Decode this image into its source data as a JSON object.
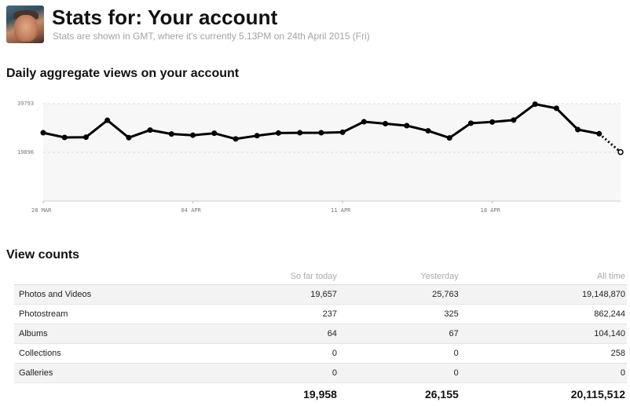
{
  "header": {
    "title": "Stats for: Your account",
    "subtitle": "Stats are shown in GMT, where it's currently 5.13PM on 24th April 2015 (Fri)"
  },
  "chart_section": {
    "title": "Daily aggregate views on your account"
  },
  "chart_data": {
    "type": "area",
    "title": "Daily aggregate views on your account",
    "x_tick_labels": [
      "28 MAR",
      "04 APR",
      "11 APR",
      "18 APR"
    ],
    "x_tick_indices": [
      0,
      7,
      14,
      21
    ],
    "y_tick_labels": [
      "39793",
      "19896"
    ],
    "y_ticks": [
      39793,
      19896
    ],
    "ylim": [
      0,
      39793
    ],
    "grid": "horizontal dashed",
    "series": [
      {
        "values": [
          27900,
          26000,
          26100,
          33000,
          25900,
          29000,
          27400,
          26900,
          27700,
          25400,
          26700,
          27800,
          27900,
          27900,
          28100,
          32400,
          31600,
          30800,
          28700,
          25800,
          31800,
          32300,
          33100,
          39600,
          37900,
          29200,
          27500,
          20000
        ],
        "partial_last_point": true
      }
    ]
  },
  "counts_section": {
    "title": "View counts",
    "columns": [
      "",
      "So far today",
      "Yesterday",
      "All time"
    ],
    "rows": [
      {
        "label": "Photos and Videos",
        "today": "19,657",
        "yesterday": "25,763",
        "all_time": "19,148,870"
      },
      {
        "label": "Photostream",
        "today": "237",
        "yesterday": "325",
        "all_time": "862,244"
      },
      {
        "label": "Albums",
        "today": "64",
        "yesterday": "67",
        "all_time": "104,140"
      },
      {
        "label": "Collections",
        "today": "0",
        "yesterday": "0",
        "all_time": "258"
      },
      {
        "label": "Galleries",
        "today": "0",
        "yesterday": "0",
        "all_time": "0"
      }
    ],
    "totals": {
      "today": "19,958",
      "yesterday": "26,155",
      "all_time": "20,115,512"
    }
  }
}
